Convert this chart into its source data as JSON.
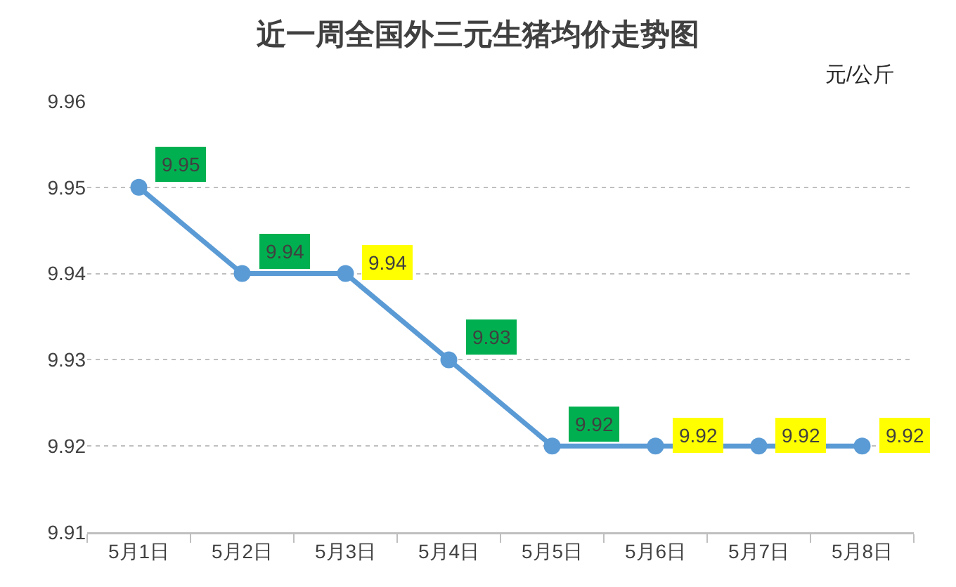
{
  "chart_data": {
    "type": "line",
    "title": "近一周全国外三元生猪均价走势图",
    "ylabel": "元/公斤",
    "categories": [
      "5月1日",
      "5月2日",
      "5月3日",
      "5月4日",
      "5月5日",
      "5月6日",
      "5月7日",
      "5月8日"
    ],
    "series": [
      {
        "color": "#5b9bd5",
        "values": [
          9.95,
          9.94,
          9.94,
          9.93,
          9.92,
          9.92,
          9.92,
          9.92
        ]
      }
    ],
    "ylim": [
      9.91,
      9.96
    ],
    "yticks": [
      9.91,
      9.92,
      9.93,
      9.94,
      9.95,
      9.96
    ],
    "grid": "y",
    "marker": "circle",
    "line_style": "solid",
    "data_labels": true
  }
}
